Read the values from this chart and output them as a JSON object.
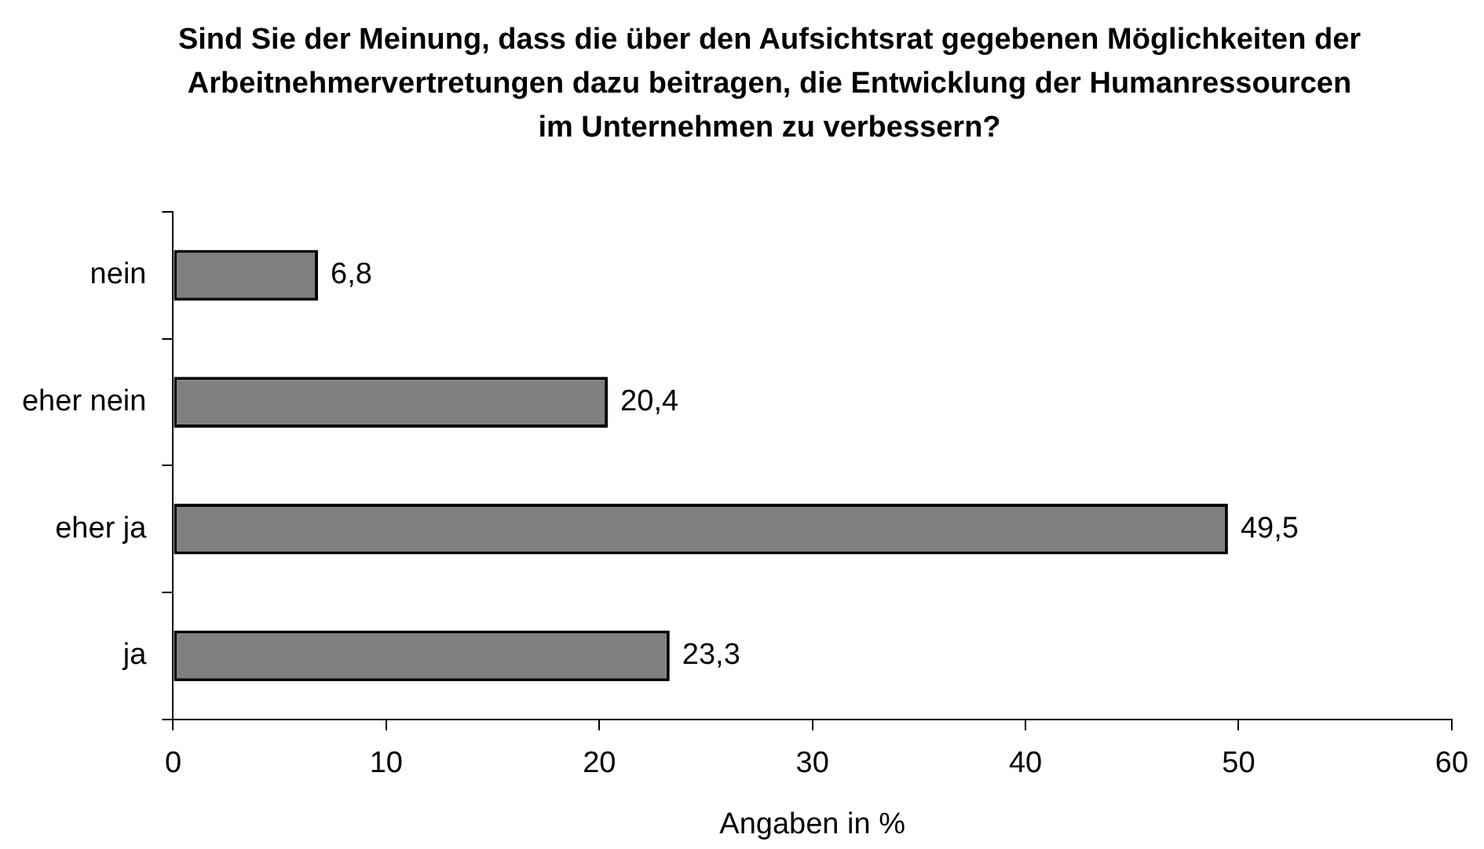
{
  "chart_data": {
    "type": "bar",
    "orientation": "horizontal",
    "title": "Sind Sie der Meinung, dass die über den Aufsichtsrat gegebenen Möglichkeiten der Arbeitnehmervertretungen dazu beitragen, die Entwicklung der Humanressourcen im Unternehmen zu verbessern?",
    "xlabel": "Angaben in %",
    "categories": [
      "nein",
      "eher nein",
      "eher ja",
      "ja"
    ],
    "values": [
      6.8,
      20.4,
      49.5,
      23.3
    ],
    "value_labels": [
      "6,8",
      "20,4",
      "49,5",
      "23,3"
    ],
    "color": "#808080",
    "xlim": [
      0,
      60
    ],
    "xticks": [
      0,
      10,
      20,
      30,
      40,
      50,
      60
    ],
    "grid": false,
    "legend": false
  }
}
